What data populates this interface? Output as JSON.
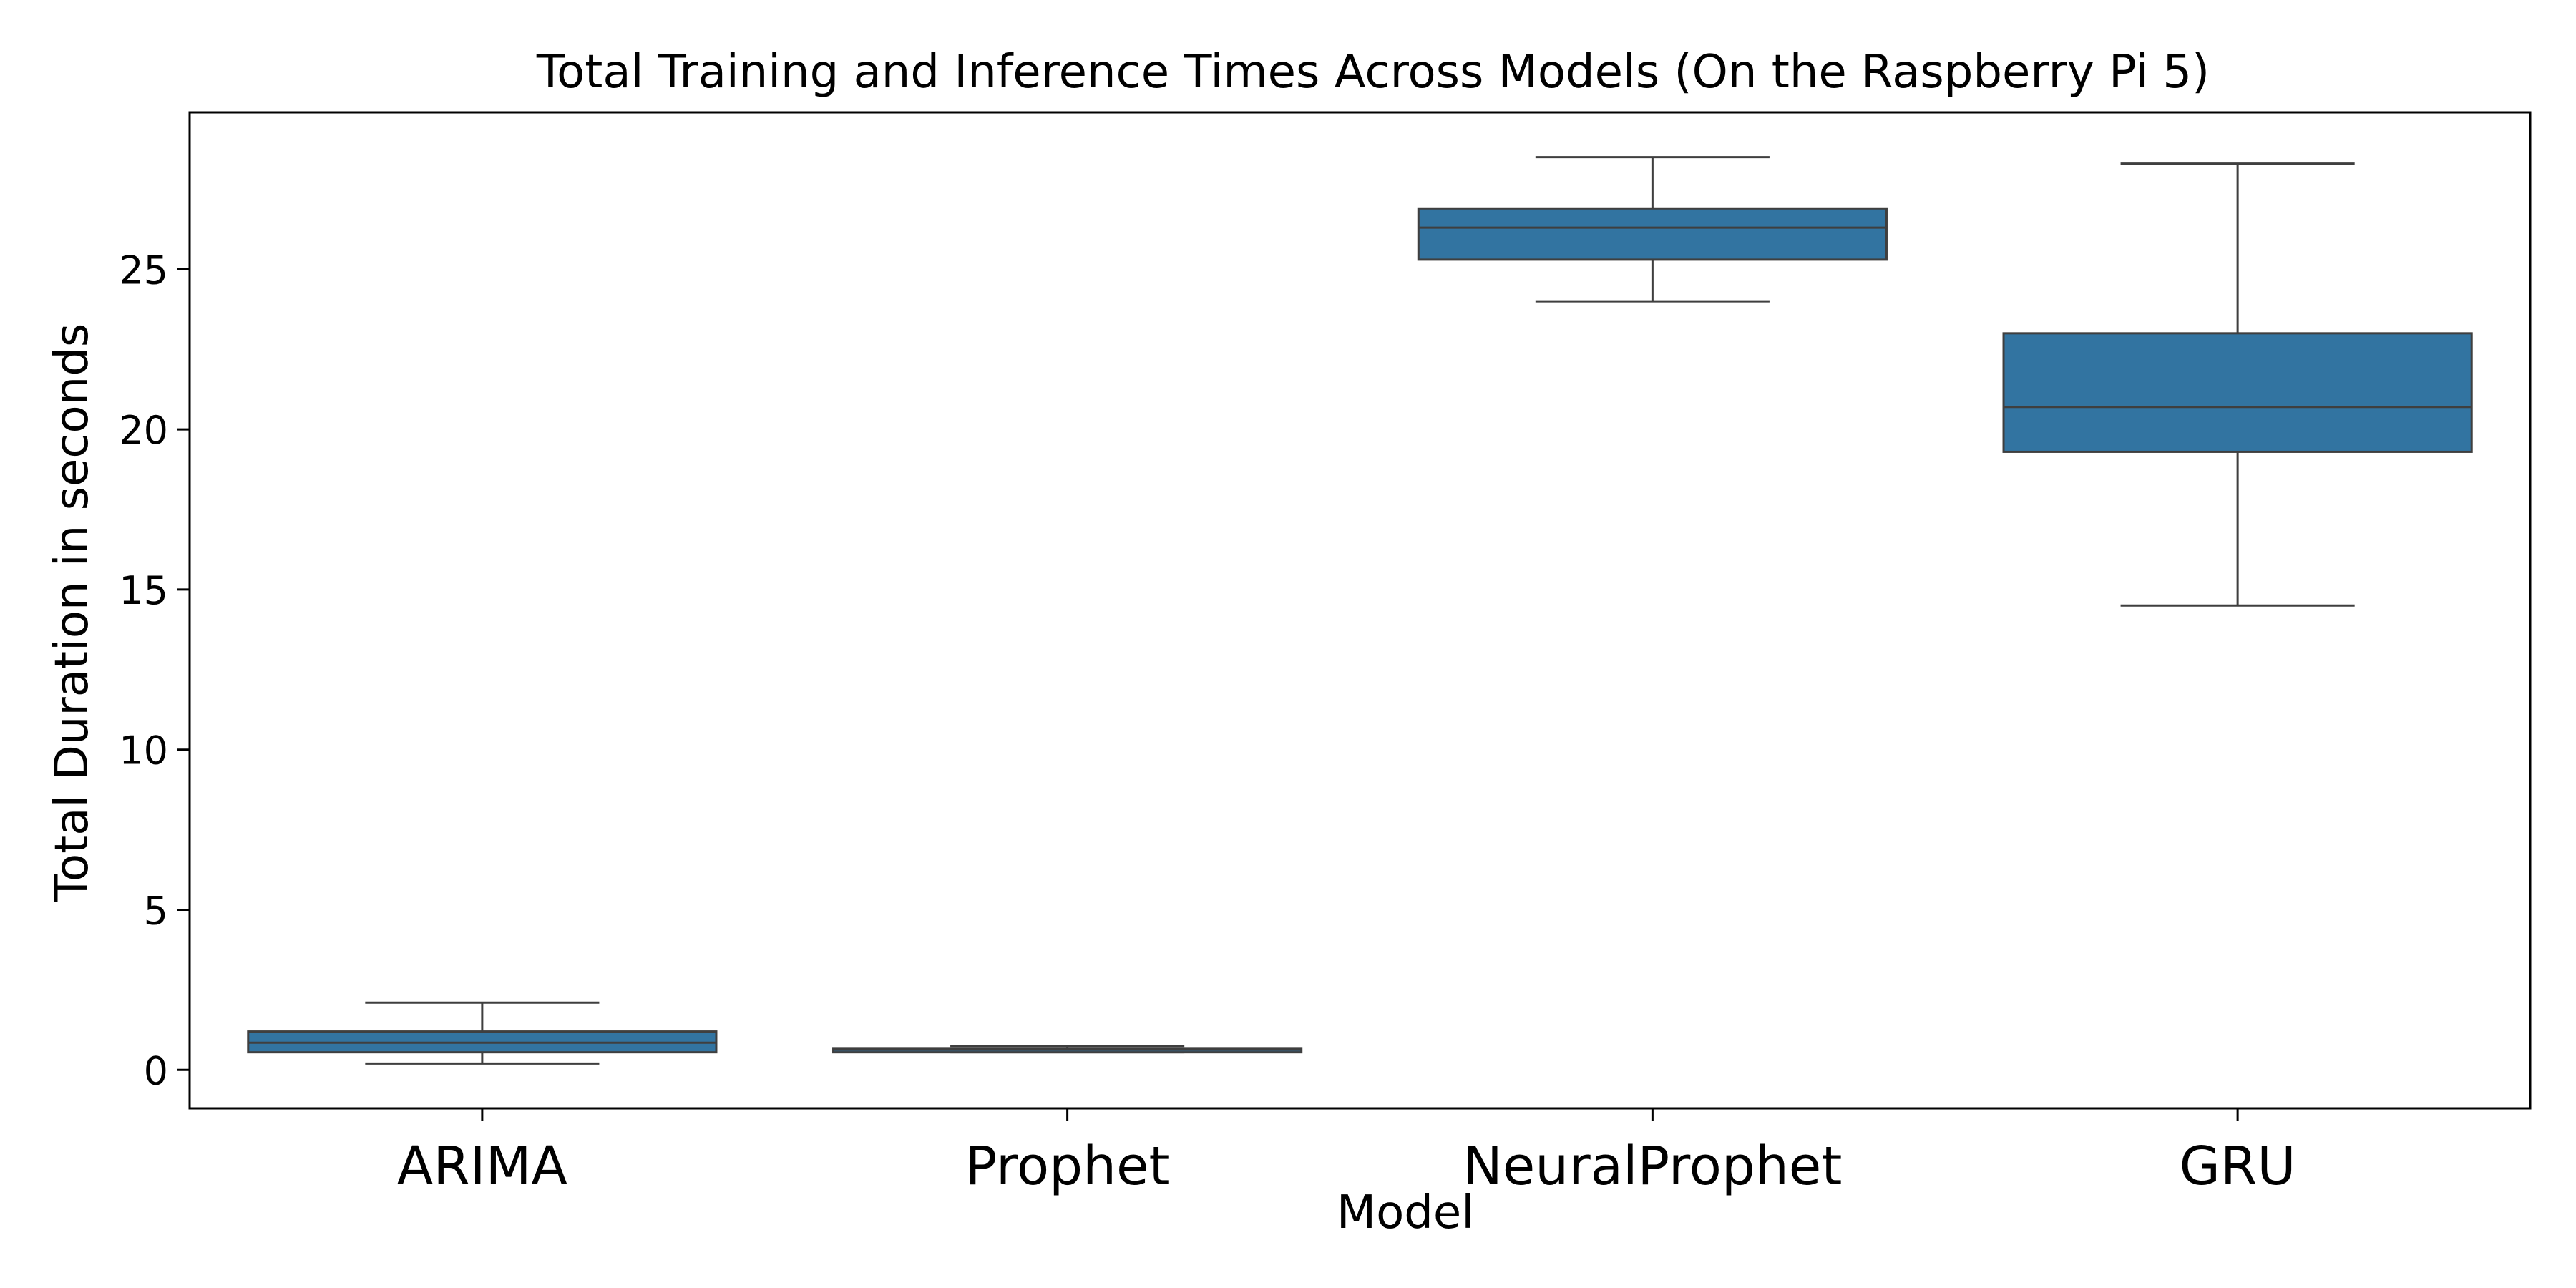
{
  "chart_data": {
    "type": "box",
    "title": "Total Training and Inference Times Across Models (On the Raspberry Pi 5)",
    "xlabel": "Model",
    "ylabel": "Total Duration in seconds",
    "ylim": [
      -1.2,
      29.9
    ],
    "yticks": [
      0,
      5,
      10,
      15,
      20,
      25
    ],
    "grid": false,
    "legend": "none",
    "categories": [
      "ARIMA",
      "Prophet",
      "NeuralProphet",
      "GRU"
    ],
    "series": [
      {
        "values": [
          {
            "category": "ARIMA",
            "whisker_low": 0.2,
            "q1": 0.55,
            "median": 0.85,
            "q3": 1.2,
            "whisker_high": 2.1
          },
          {
            "category": "Prophet",
            "whisker_low": 0.55,
            "q1": 0.55,
            "median": 0.63,
            "q3": 0.68,
            "whisker_high": 0.75
          },
          {
            "category": "NeuralProphet",
            "whisker_low": 24.0,
            "q1": 25.3,
            "median": 26.3,
            "q3": 26.9,
            "whisker_high": 28.5
          },
          {
            "category": "GRU",
            "whisker_low": 14.5,
            "q1": 19.3,
            "median": 20.7,
            "q3": 23.0,
            "whisker_high": 28.3
          }
        ]
      }
    ],
    "colors": {
      "box_fill": "#3274a1",
      "box_edge": "#3f3f3f",
      "axis": "#000000"
    }
  }
}
